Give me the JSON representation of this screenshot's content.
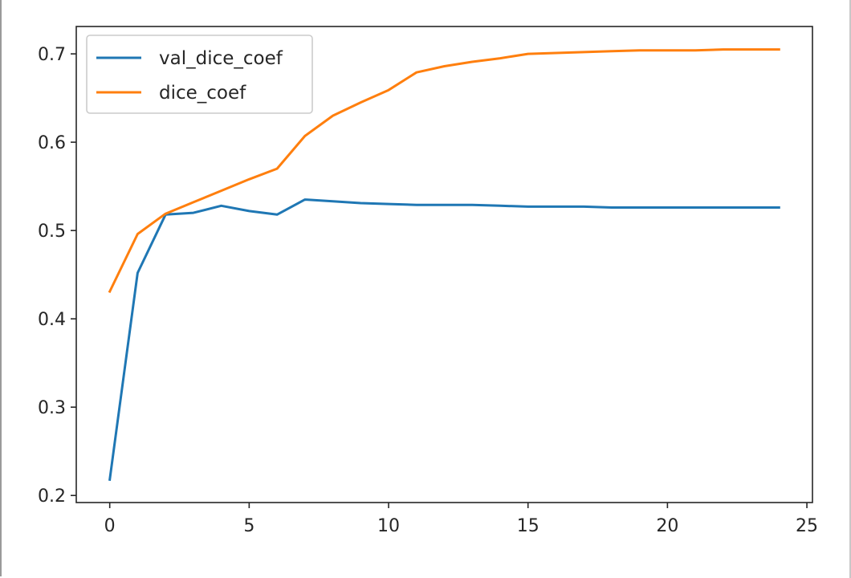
{
  "chart_data": {
    "type": "line",
    "title": "",
    "xlabel": "",
    "ylabel": "",
    "xlim": [
      -1.2,
      25.2
    ],
    "ylim": [
      0.192,
      0.731
    ],
    "xticks": [
      0,
      5,
      10,
      15,
      20,
      25
    ],
    "xtick_labels": [
      "0",
      "5",
      "10",
      "15",
      "20",
      "25"
    ],
    "yticks": [
      0.2,
      0.3,
      0.4,
      0.5,
      0.6,
      0.7
    ],
    "ytick_labels": [
      "0.2",
      "0.3",
      "0.4",
      "0.5",
      "0.6",
      "0.7"
    ],
    "grid": false,
    "legend_position": "top-left",
    "x": [
      0,
      1,
      2,
      3,
      4,
      5,
      6,
      7,
      8,
      9,
      10,
      11,
      12,
      13,
      14,
      15,
      16,
      17,
      18,
      19,
      20,
      21,
      22,
      23,
      24
    ],
    "series": [
      {
        "name": "val_dice_coef",
        "color": "#1f77b4",
        "values": [
          0.218,
          0.452,
          0.518,
          0.52,
          0.528,
          0.522,
          0.518,
          0.535,
          0.533,
          0.531,
          0.53,
          0.529,
          0.529,
          0.529,
          0.528,
          0.527,
          0.527,
          0.527,
          0.526,
          0.526,
          0.526,
          0.526,
          0.526,
          0.526,
          0.526
        ]
      },
      {
        "name": "dice_coef",
        "color": "#ff7f0e",
        "values": [
          0.431,
          0.496,
          0.519,
          0.532,
          0.545,
          0.558,
          0.57,
          0.607,
          0.63,
          0.645,
          0.659,
          0.679,
          0.686,
          0.691,
          0.695,
          0.7,
          0.701,
          0.702,
          0.703,
          0.704,
          0.704,
          0.704,
          0.705,
          0.705,
          0.705
        ]
      }
    ]
  }
}
